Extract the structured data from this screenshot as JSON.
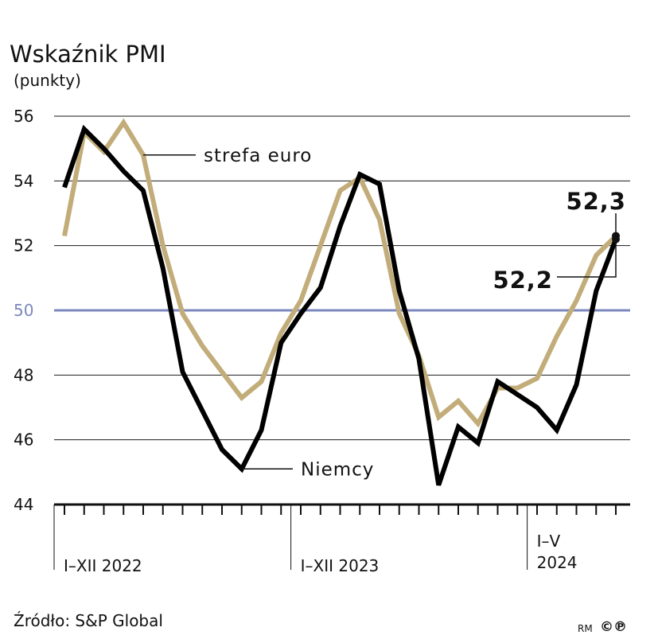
{
  "header": {
    "title": "Wskaźnik PMI",
    "subtitle": "(punkty)"
  },
  "footer": {
    "source": "Źródło: S&P Global",
    "credit_prefix": "RM",
    "credit_symbols": "©℗"
  },
  "colors": {
    "germany": "#000000",
    "eurozone": "#c2ad7a",
    "reference_line": "#7b87bd",
    "gridline": "#1a1a1a",
    "reference_label": "#7b87bd"
  },
  "chart_data": {
    "type": "line",
    "title": "Wskaźnik PMI",
    "subtitle": "(punkty)",
    "xlabel": "",
    "ylabel": "",
    "ylim": [
      44,
      56
    ],
    "yticks": [
      "44",
      "46",
      "48",
      "50",
      "52",
      "54",
      "56"
    ],
    "reference_line": {
      "value": 50,
      "label": "50"
    },
    "grid": true,
    "periods": [
      {
        "label": "I–XII 2022",
        "months": 12
      },
      {
        "label": "I–XII 2023",
        "months": 12
      },
      {
        "label": "I–V\n2024",
        "months": 5
      }
    ],
    "x": [
      "I 2022",
      "II 2022",
      "III 2022",
      "IV 2022",
      "V 2022",
      "VI 2022",
      "VII 2022",
      "VIII 2022",
      "IX 2022",
      "X 2022",
      "XI 2022",
      "XII 2022",
      "I 2023",
      "II 2023",
      "III 2023",
      "IV 2023",
      "V 2023",
      "VI 2023",
      "VII 2023",
      "VIII 2023",
      "IX 2023",
      "X 2023",
      "XI 2023",
      "XII 2023",
      "I 2024",
      "II 2024",
      "III 2024",
      "IV 2024",
      "V 2024"
    ],
    "series": [
      {
        "name": "Niemcy",
        "color": "#000000",
        "values": [
          53.8,
          55.6,
          55.0,
          54.3,
          53.7,
          51.3,
          48.1,
          46.9,
          45.7,
          45.1,
          46.3,
          49.0,
          49.9,
          50.7,
          52.6,
          54.2,
          53.9,
          50.6,
          48.5,
          44.6,
          46.4,
          45.9,
          47.8,
          47.4,
          47.0,
          46.3,
          47.7,
          50.6,
          52.2
        ],
        "last_value_label": "52,2"
      },
      {
        "name": "strefa euro",
        "color": "#c2ad7a",
        "values": [
          52.3,
          55.5,
          54.9,
          55.8,
          54.8,
          52.0,
          49.9,
          48.9,
          48.1,
          47.3,
          47.8,
          49.3,
          50.3,
          52.0,
          53.7,
          54.1,
          52.8,
          49.9,
          48.6,
          46.7,
          47.2,
          46.5,
          47.6,
          47.6,
          47.9,
          49.2,
          50.3,
          51.7,
          52.3
        ],
        "last_value_label": "52,3"
      }
    ]
  }
}
